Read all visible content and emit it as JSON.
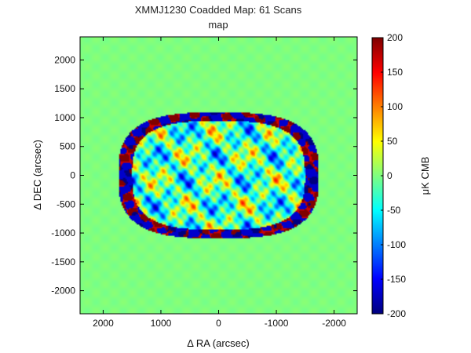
{
  "chart_data": {
    "type": "heatmap",
    "title": "XMMJ1230 Coadded Map: 61 Scans",
    "subtitle": "map",
    "xlabel": "Δ RA (arcsec)",
    "ylabel": "Δ DEC (arcsec)",
    "xlim": [
      2400,
      -2400
    ],
    "ylim": [
      -2400,
      2400
    ],
    "x_reversed": true,
    "xticks": [
      2000,
      1000,
      0,
      -1000,
      -2000
    ],
    "xtick_labels": [
      "2000",
      "1000",
      "0",
      "-1000",
      "-2000"
    ],
    "yticks": [
      2000,
      1500,
      1000,
      500,
      0,
      -500,
      -1000,
      -1500,
      -2000
    ],
    "ytick_labels": [
      "2000",
      "1500",
      "1000",
      "500",
      "0",
      "-500",
      "-1000",
      "-1500",
      "-2000"
    ],
    "colormap": "jet",
    "colorbar": {
      "label": "μK CMB",
      "clim": [
        -200,
        200
      ],
      "ticks": [
        200,
        150,
        100,
        50,
        0,
        -50,
        -100,
        -150,
        -200
      ],
      "tick_labels": [
        "200",
        "150",
        "100",
        "50",
        "0",
        "-50",
        "-100",
        "-150",
        "-200"
      ]
    },
    "background_value": 0,
    "observed_region": {
      "shape": "rounded-oval",
      "center": [
        0,
        0
      ],
      "x_half_width": 1700,
      "y_half_width": 1070,
      "interior_range": [
        -120,
        80
      ],
      "edge_ring_range": [
        -200,
        200
      ]
    },
    "grid": false
  }
}
